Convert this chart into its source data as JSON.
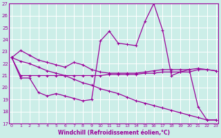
{
  "xlabel": "Windchill (Refroidissement éolien,°C)",
  "x_ticks": [
    0,
    1,
    2,
    3,
    4,
    5,
    6,
    7,
    8,
    9,
    10,
    11,
    12,
    13,
    14,
    15,
    16,
    17,
    18,
    19,
    20,
    21,
    22,
    23
  ],
  "ylim": [
    17,
    27
  ],
  "yticks": [
    17,
    18,
    19,
    20,
    21,
    22,
    23,
    24,
    25,
    26,
    27
  ],
  "background_color": "#cceee8",
  "line_color": "#990099",
  "line1_y": [
    22.5,
    23.1,
    22.7,
    22.3,
    22.1,
    21.9,
    21.7,
    22.1,
    21.9,
    21.5,
    21.3,
    21.2,
    21.2,
    21.2,
    21.2,
    21.3,
    21.4,
    21.5,
    21.5,
    21.5,
    21.5,
    21.6,
    21.5,
    21.4
  ],
  "line2_y": [
    22.5,
    20.8,
    20.8,
    19.6,
    19.3,
    19.5,
    19.3,
    19.1,
    18.9,
    19.0,
    23.9,
    24.7,
    23.7,
    23.6,
    23.5,
    25.5,
    27.0,
    24.8,
    21.0,
    21.3,
    21.5,
    18.4,
    17.3,
    17.3
  ],
  "line3_y": [
    22.5,
    21.0,
    21.0,
    21.0,
    21.0,
    21.0,
    21.0,
    21.0,
    21.0,
    21.0,
    21.0,
    21.1,
    21.1,
    21.1,
    21.1,
    21.2,
    21.2,
    21.3,
    21.3,
    21.3,
    21.3,
    21.5,
    21.5,
    21.4
  ],
  "line4_y": [
    22.5,
    22.2,
    22.0,
    21.7,
    21.4,
    21.2,
    21.0,
    20.7,
    20.4,
    20.2,
    19.9,
    19.7,
    19.5,
    19.2,
    18.9,
    18.7,
    18.5,
    18.3,
    18.1,
    17.9,
    17.7,
    17.5,
    17.3,
    17.3
  ]
}
